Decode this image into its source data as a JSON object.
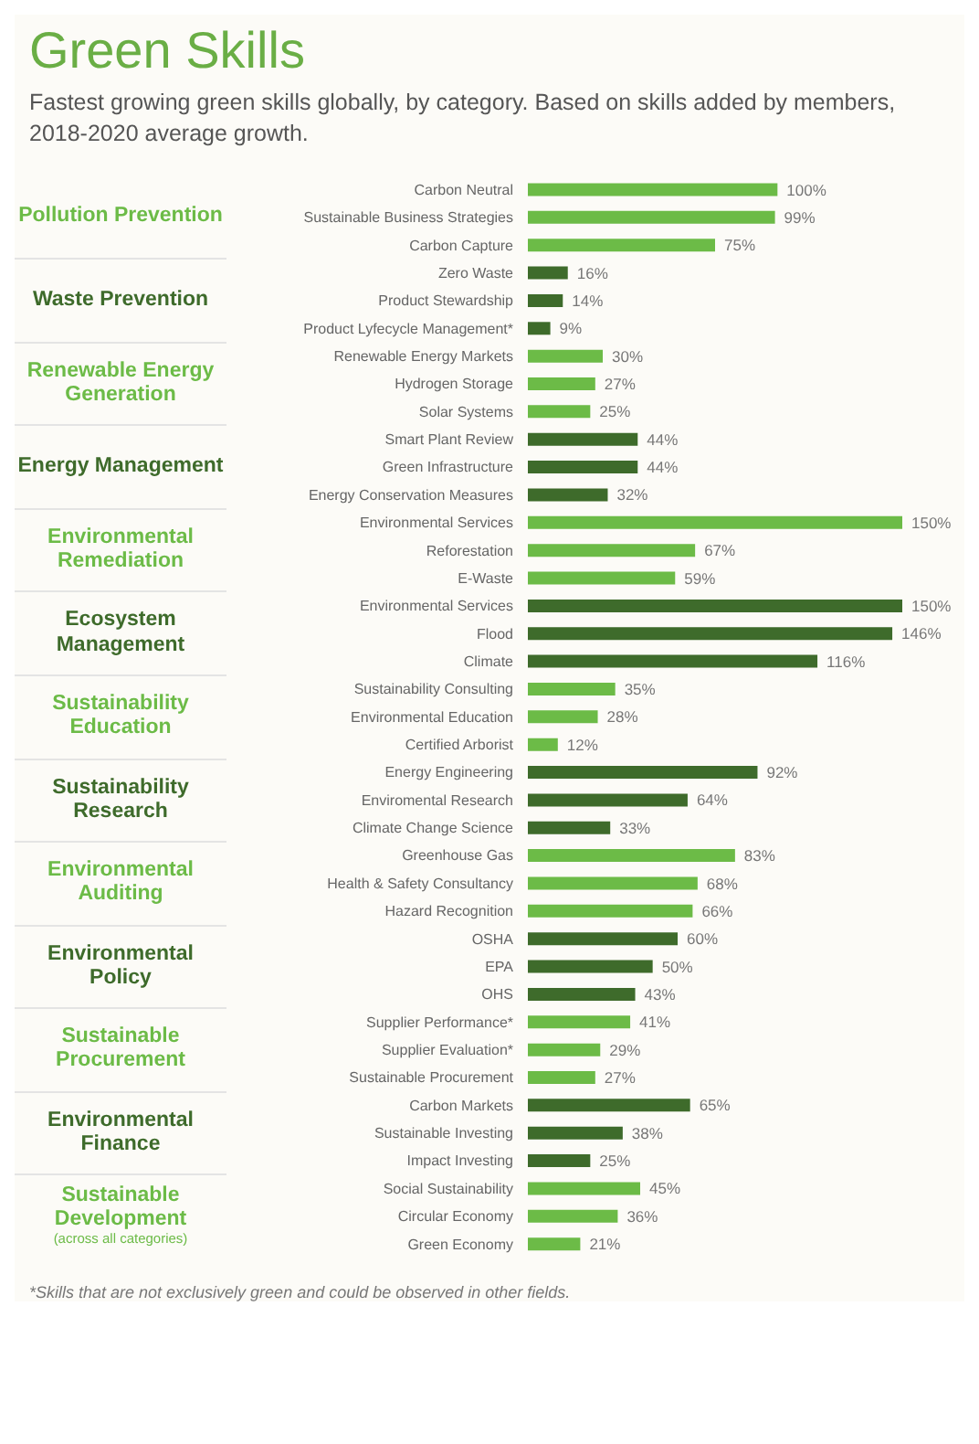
{
  "chart_data": {
    "type": "bar",
    "title": "Green Skills",
    "subtitle": "Fastest growing green skills globally, by category. Based on skills added by members, 2018-2020 average growth.",
    "categories": [
      "Carbon Neutral",
      "Sustainable Business Strategies",
      "Carbon Capture",
      "Zero Waste",
      "Product Stewardship",
      "Product Lyfecycle Management*",
      "Renewable Energy Markets",
      "Hydrogen Storage",
      "Solar Systems",
      "Smart Plant Review",
      "Green Infrastructure",
      "Energy Conservation Measures",
      "Environmental Services",
      "Reforestation",
      "E-Waste",
      "Environmental Services",
      "Flood",
      "Climate",
      "Sustainability Consulting",
      "Environmental Education",
      "Certified Arborist",
      "Energy Engineering",
      "Enviromental Research",
      "Climate Change Science",
      "Greenhouse Gas",
      "Health & Safety Consultancy",
      "Hazard Recognition",
      "OSHA",
      "EPA",
      "OHS",
      "Supplier Performance*",
      "Supplier Evaluation*",
      "Sustainable Procurement",
      "Carbon Markets",
      "Sustainable Investing",
      "Impact Investing",
      "Social Sustainability",
      "Circular Economy",
      "Green Economy"
    ],
    "values": [
      100,
      99,
      75,
      16,
      14,
      9,
      30,
      27,
      25,
      44,
      44,
      32,
      150,
      67,
      59,
      150,
      146,
      116,
      35,
      28,
      12,
      92,
      64,
      33,
      83,
      68,
      66,
      60,
      50,
      43,
      41,
      29,
      27,
      65,
      38,
      25,
      45,
      36,
      21
    ],
    "value_labels": [
      "100%",
      "99%",
      "75%",
      "16%",
      "14%",
      "9%",
      "30%",
      "27%",
      "25%",
      "44%",
      "44%",
      "32%",
      "150%",
      "67%",
      "59%",
      "150%",
      "146%",
      "116%",
      "35%",
      "28%",
      "12%",
      "92%",
      "64%",
      "33%",
      "83%",
      "68%",
      "66%",
      "60%",
      "50%",
      "43%",
      "41%",
      "29%",
      "27%",
      "65%",
      "38%",
      "25%",
      "45%",
      "36%",
      "21%"
    ],
    "colors": [
      "#6cbb47",
      "#6cbb47",
      "#6cbb47",
      "#3e6b2b",
      "#3e6b2b",
      "#3e6b2b",
      "#6cbb47",
      "#6cbb47",
      "#6cbb47",
      "#3e6b2b",
      "#3e6b2b",
      "#3e6b2b",
      "#6cbb47",
      "#6cbb47",
      "#6cbb47",
      "#3e6b2b",
      "#3e6b2b",
      "#3e6b2b",
      "#6cbb47",
      "#6cbb47",
      "#6cbb47",
      "#3e6b2b",
      "#3e6b2b",
      "#3e6b2b",
      "#6cbb47",
      "#6cbb47",
      "#6cbb47",
      "#3e6b2b",
      "#3e6b2b",
      "#3e6b2b",
      "#6cbb47",
      "#6cbb47",
      "#6cbb47",
      "#3e6b2b",
      "#3e6b2b",
      "#3e6b2b",
      "#6cbb47",
      "#6cbb47",
      "#6cbb47"
    ],
    "annotations": [
      "Pollution Prevention",
      "Waste Prevention",
      "Renewable Energy Generation",
      "Energy Management",
      "Environmental Remediation",
      "Ecosystem Management",
      "Sustainability Education",
      "Sustainability Research",
      "Environmental Auditing",
      "Environmental Policy",
      "Sustainable Procurement",
      "Environmental Finance",
      "Sustainable Development",
      "(across all categories)",
      "*Skills that are not exclusively green and could be observed in other fields."
    ],
    "orientation": "horizontal"
  }
}
